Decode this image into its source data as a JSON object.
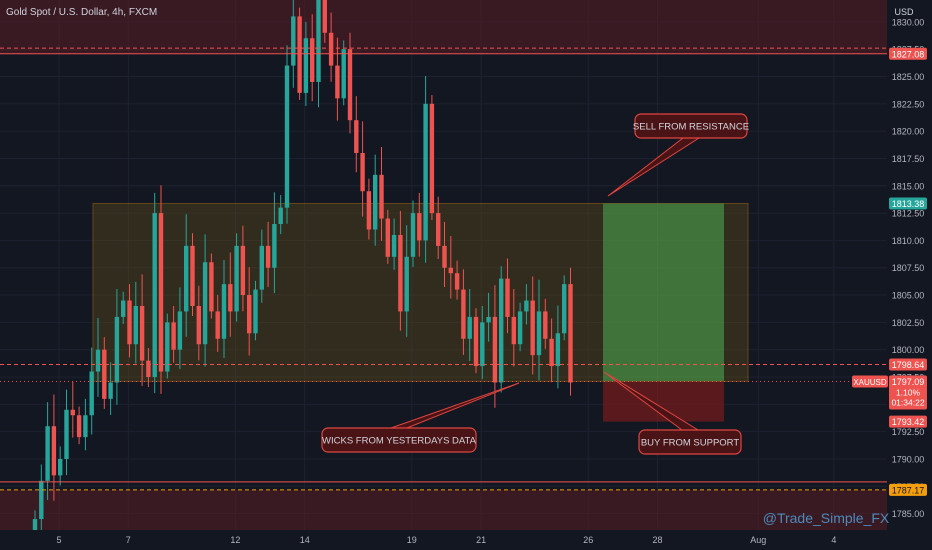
{
  "header": {
    "symbol_title": "Gold Spot / U.S. Dollar, 4h, FXCM",
    "currency": "USD"
  },
  "colors": {
    "background": "#131722",
    "bull": "#26a69a",
    "bear": "#ef5350",
    "zone_border": "#f59e0b",
    "target_fill": "#4caf50",
    "stop_fill": "#8b1a1a",
    "red_band": "#5a1c22",
    "callout_bg": "#4a1416",
    "callout_border": "#e0453f",
    "text": "#d1d4dc"
  },
  "axis": {
    "y_min": 1783.5,
    "y_max": 1832,
    "y_ticks": [
      "1785.00",
      "1787.50",
      "1790.00",
      "1792.50",
      "1795.00",
      "1797.50",
      "1800.00",
      "1802.50",
      "1805.00",
      "1807.50",
      "1810.00",
      "1812.50",
      "1815.00",
      "1817.50",
      "1820.00",
      "1822.50",
      "1825.00",
      "1827.50",
      "1830.00"
    ],
    "x_ticks": [
      {
        "label": "5",
        "bar": 0
      },
      {
        "label": "7",
        "bar": 11
      },
      {
        "label": "12",
        "bar": 28
      },
      {
        "label": "14",
        "bar": 39
      },
      {
        "label": "19",
        "bar": 56
      },
      {
        "label": "21",
        "bar": 67
      },
      {
        "label": "26",
        "bar": 84
      },
      {
        "label": "28",
        "bar": 95
      },
      {
        "label": "Aug",
        "bar": 111
      },
      {
        "label": "4",
        "bar": 123
      }
    ]
  },
  "price_labels": [
    {
      "text": "1827.08",
      "value": 1827.08,
      "bg": "#ef5350",
      "fg": "#ffffff"
    },
    {
      "text": "1813.38",
      "value": 1813.38,
      "bg": "#26a69a",
      "fg": "#ffffff"
    },
    {
      "text": "1798.64",
      "value": 1798.64,
      "bg": "#ef5350",
      "fg": "#ffffff"
    },
    {
      "text": "1797.10",
      "value": 1797.1,
      "bg": "#5d606b",
      "fg": "#ffffff"
    },
    {
      "text": "1793.42",
      "value": 1793.42,
      "bg": "#ef5350",
      "fg": "#ffffff"
    },
    {
      "text": "1787.17",
      "value": 1787.17,
      "bg": "#f59e0b",
      "fg": "#131722"
    }
  ],
  "current_price": {
    "symbol": "XAUUSD",
    "price": "1797.09",
    "change": "1.10%",
    "timer": "01:34:22",
    "value": 1797.09
  },
  "levels": {
    "resistance_line": 1827.08,
    "support_line": 1787.17,
    "zone_top": 1813.38,
    "zone_bottom": 1797.1,
    "entry": 1797.1,
    "target": 1813.38,
    "stop": 1793.42
  },
  "annotations": [
    {
      "text": "SELL FROM RESISTANCE"
    },
    {
      "text": "WICKS FROM YESTERDAYS DATA"
    },
    {
      "text": "BUY FROM SUPPORT"
    }
  ],
  "watermark": "@Trade_Simple_FX",
  "chart_data": {
    "type": "candlestick",
    "title": "Gold Spot / U.S. Dollar, 4h, FXCM",
    "ylabel": "USD",
    "ylim": [
      1783.5,
      1832
    ],
    "x_tick_labels": [
      "5",
      "7",
      "12",
      "14",
      "19",
      "21",
      "26",
      "28",
      "Aug",
      "4"
    ],
    "closes": [
      1784.5,
      1788.0,
      1793.0,
      1788.5,
      1790.0,
      1794.5,
      1794.0,
      1792.0,
      1794.0,
      1798.0,
      1800.0,
      1795.5,
      1797.0,
      1803.0,
      1804.5,
      1800.5,
      1804.0,
      1799.0,
      1797.5,
      1812.5,
      1798.0,
      1802.5,
      1800.0,
      1803.5,
      1809.5,
      1804.0,
      1800.5,
      1808.0,
      1803.5,
      1801.0,
      1806.0,
      1803.5,
      1809.5,
      1805.0,
      1801.5,
      1805.5,
      1809.5,
      1807.5,
      1811.5,
      1813.0,
      1826.0,
      1830.5,
      1823.5,
      1828.5,
      1824.5,
      1832.0,
      1829.0,
      1826.0,
      1823.0,
      1827.5,
      1821.0,
      1818.0,
      1814.5,
      1811.0,
      1816.0,
      1812.0,
      1808.5,
      1810.5,
      1803.5,
      1808.5,
      1812.5,
      1810.0,
      1822.5,
      1812.5,
      1809.5,
      1807.5,
      1807.0,
      1805.5,
      1801.0,
      1803.0,
      1798.5,
      1802.5,
      1803.0,
      1797.0,
      1806.5,
      1803.0,
      1800.5,
      1803.5,
      1804.5,
      1799.5,
      1803.5,
      1801.0,
      1798.5,
      1801.5,
      1806.0,
      1797.0
    ]
  }
}
